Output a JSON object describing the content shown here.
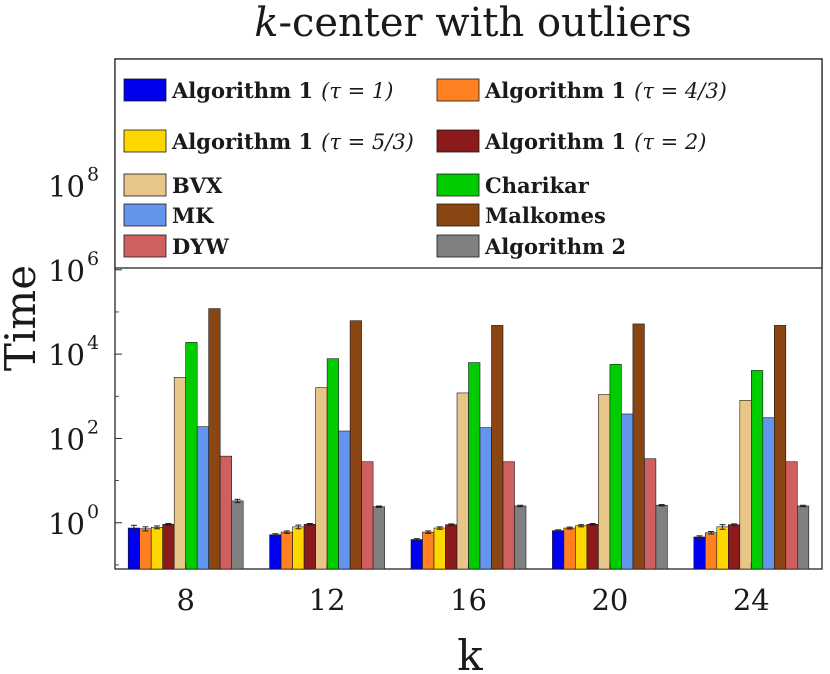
{
  "chart_data": {
    "type": "bar",
    "title": "k-center with outliers",
    "title_parts": {
      "italic": "k",
      "rest": "-center with outliers"
    },
    "xlabel": "k",
    "ylabel": "Time",
    "yscale": "log",
    "ylim": [
      0.08,
      100000000000
    ],
    "categories": [
      "8",
      "12",
      "16",
      "20",
      "24"
    ],
    "y_ticks": [
      {
        "value": 1,
        "base": "10",
        "exp": "0"
      },
      {
        "value": 100,
        "base": "10",
        "exp": "2"
      },
      {
        "value": 10000,
        "base": "10",
        "exp": "4"
      },
      {
        "value": 1000000,
        "base": "10",
        "exp": "6"
      },
      {
        "value": 100000000,
        "base": "10",
        "exp": "8"
      }
    ],
    "legend_location": "top",
    "series": [
      {
        "name": "Algorithm 1 (τ = 1)",
        "label": "Algorithm 1",
        "param": "(τ = 1)",
        "color": "#0000f0",
        "values": [
          0.75,
          0.52,
          0.4,
          0.65,
          0.46
        ],
        "errors": [
          0.12,
          0.03,
          0.02,
          0.03,
          0.03
        ]
      },
      {
        "name": "Algorithm 1 (τ = 4/3)",
        "label": "Algorithm 1",
        "param": "(τ = 4/3)",
        "color": "#ff8020",
        "values": [
          0.72,
          0.6,
          0.6,
          0.75,
          0.58
        ],
        "errors": [
          0.08,
          0.04,
          0.04,
          0.04,
          0.04
        ]
      },
      {
        "name": "Algorithm 1 (τ = 5/3)",
        "label": "Algorithm 1",
        "param": "(τ = 5/3)",
        "color": "#ffd700",
        "values": [
          0.78,
          0.8,
          0.75,
          0.85,
          0.8
        ],
        "errors": [
          0.06,
          0.08,
          0.05,
          0.05,
          0.1
        ]
      },
      {
        "name": "Algorithm 1 (τ = 2)",
        "label": "Algorithm 1",
        "param": "(τ = 2)",
        "color": "#8b1a1a",
        "values": [
          0.92,
          0.92,
          0.9,
          0.92,
          0.9
        ],
        "errors": [
          0.04,
          0.04,
          0.04,
          0.04,
          0.04
        ]
      },
      {
        "name": "BVX",
        "label": "BVX",
        "param": "",
        "color": "#e8c588",
        "values": [
          2800,
          1600,
          1200,
          1100,
          800
        ],
        "errors": [
          0,
          0,
          0,
          0,
          0
        ]
      },
      {
        "name": "Charikar",
        "label": "Charikar",
        "param": "",
        "color": "#00cc00",
        "values": [
          19000,
          7800,
          6300,
          5700,
          4100
        ],
        "errors": [
          0,
          0,
          0,
          0,
          0
        ]
      },
      {
        "name": "MK",
        "label": "MK",
        "param": "",
        "color": "#6495ed",
        "values": [
          190,
          150,
          180,
          380,
          310
        ],
        "errors": [
          0,
          0,
          0,
          0,
          0
        ]
      },
      {
        "name": "Malkomes",
        "label": "Malkomes",
        "param": "",
        "color": "#8b4513",
        "values": [
          120000,
          62000,
          48000,
          52000,
          48000
        ],
        "errors": [
          0,
          0,
          0,
          0,
          0
        ]
      },
      {
        "name": "DYW",
        "label": "DYW",
        "param": "",
        "color": "#d06060",
        "values": [
          38,
          28,
          28,
          33,
          28
        ],
        "errors": [
          0,
          0,
          0,
          0,
          0
        ]
      },
      {
        "name": "Algorithm 2",
        "label": "Algorithm 2",
        "param": "",
        "color": "#808080",
        "values": [
          3.3,
          2.4,
          2.5,
          2.6,
          2.5
        ],
        "errors": [
          0.3,
          0.1,
          0.1,
          0.1,
          0.1
        ]
      }
    ]
  }
}
